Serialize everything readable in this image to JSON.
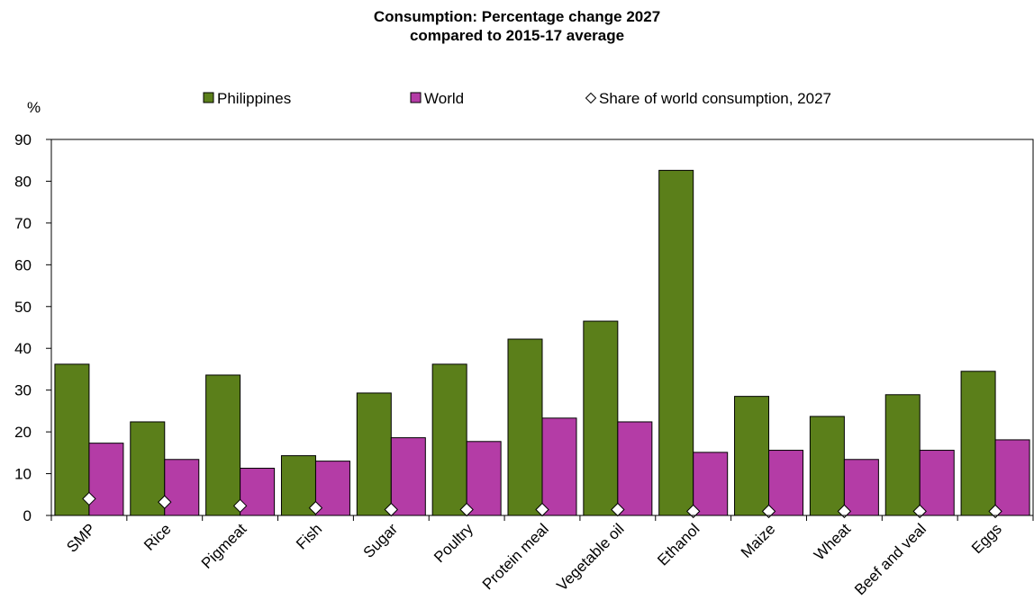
{
  "chart_data": {
    "type": "bar",
    "title": "Consumption: Percentage change 2027",
    "subtitle": "compared to 2015-17 average",
    "ylabel": "%",
    "ylim": [
      0,
      90
    ],
    "yticks": [
      0,
      10,
      20,
      30,
      40,
      50,
      60,
      70,
      80,
      90
    ],
    "grid": false,
    "legend_position": "top",
    "categories": [
      "SMP",
      "Rice",
      "Pigmeat",
      "Fish",
      "Sugar",
      "Poultry",
      "Protein meal",
      "Vegetable oil",
      "Ethanol",
      "Maize",
      "Wheat",
      "Beef and veal",
      "Eggs"
    ],
    "series": [
      {
        "name": "Philippines",
        "type": "bar",
        "color": "#5b7f1a",
        "values": [
          36.2,
          22.4,
          33.6,
          14.3,
          29.3,
          36.2,
          42.2,
          46.5,
          82.6,
          28.5,
          23.7,
          28.9,
          34.5
        ]
      },
      {
        "name": "World",
        "type": "bar",
        "color": "#b43ca6",
        "values": [
          17.3,
          13.4,
          11.3,
          13.0,
          18.6,
          17.7,
          23.3,
          22.4,
          15.1,
          15.6,
          13.4,
          15.6,
          18.1
        ]
      },
      {
        "name": "Share of world consumption, 2027",
        "type": "marker",
        "marker": "diamond",
        "color": "#ffffff",
        "values": [
          4.0,
          3.2,
          2.3,
          1.8,
          1.4,
          1.4,
          1.4,
          1.4,
          1.0,
          1.0,
          1.0,
          1.0,
          1.0
        ]
      }
    ]
  }
}
